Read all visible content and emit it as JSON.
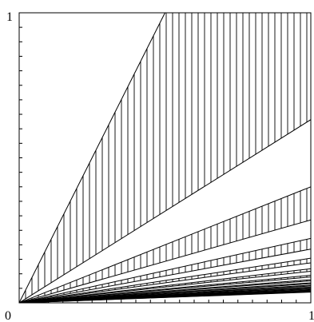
{
  "labels": {
    "y_top": "1",
    "origin": "0",
    "x_right": "1"
  },
  "figure": {
    "domain_max": 1,
    "wedge_count": 14,
    "hatch_spacing": 8,
    "wedges": [
      {
        "index": 1,
        "slope_upper": 2.0,
        "slope_lower": 0.6316
      },
      {
        "index": 2,
        "slope_upper": 0.4,
        "slope_lower": 0.2857
      },
      {
        "index": 3,
        "slope_upper": 0.2222,
        "slope_lower": 0.1852
      },
      {
        "index": 4,
        "slope_upper": 0.1538,
        "slope_lower": 0.1379
      },
      {
        "index": 5,
        "slope_upper": 0.1176,
        "slope_lower": 0.1087
      },
      {
        "index": 6,
        "slope_upper": 0.0952,
        "slope_lower": 0.0893
      },
      {
        "index": 7,
        "slope_upper": 0.08,
        "slope_lower": 0.0758
      },
      {
        "index": 8,
        "slope_upper": 0.069,
        "slope_lower": 0.0658
      },
      {
        "index": 9,
        "slope_upper": 0.0606,
        "slope_lower": 0.0581
      },
      {
        "index": 10,
        "slope_upper": 0.0541,
        "slope_lower": 0.0521
      },
      {
        "index": 11,
        "slope_upper": 0.0488,
        "slope_lower": 0.0472
      },
      {
        "index": 12,
        "slope_upper": 0.0444,
        "slope_lower": 0.0431
      },
      {
        "index": 13,
        "slope_upper": 0.0408,
        "slope_lower": 0.0397
      },
      {
        "index": 14,
        "slope_upper": 0.0377,
        "slope_lower": 0.0368
      }
    ],
    "colors": {
      "stroke": "#000000",
      "background": "#ffffff"
    }
  }
}
